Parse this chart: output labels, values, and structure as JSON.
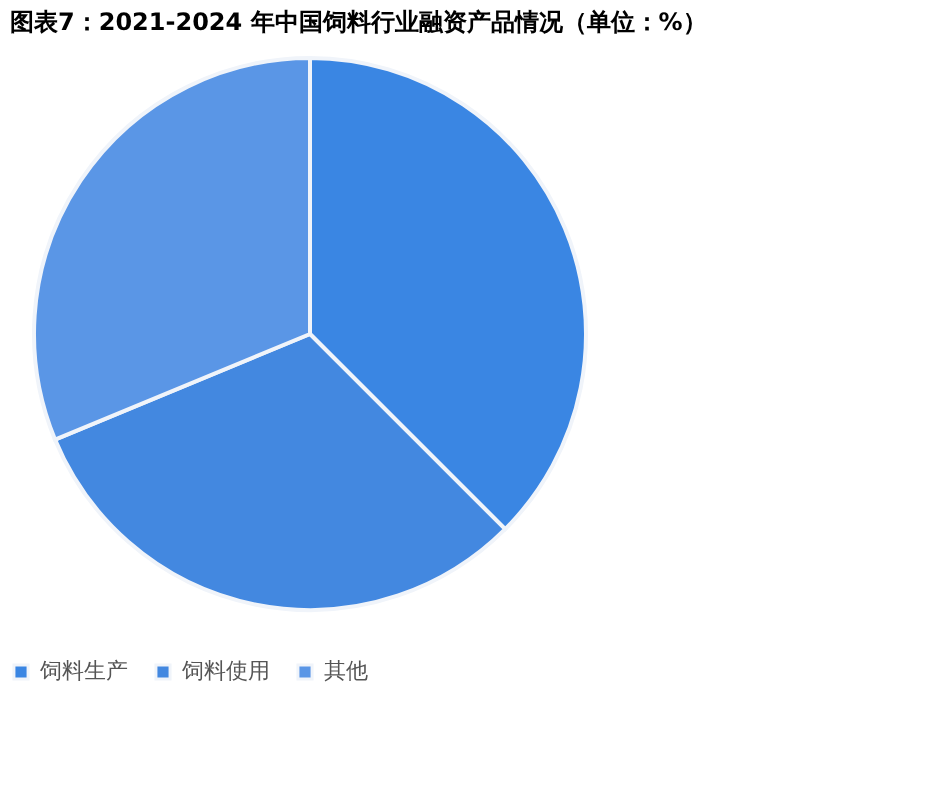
{
  "chart_data": {
    "type": "pie",
    "title": "图表7：2021-2024 年中国饲料行业融资产品情况（单位：%）",
    "categories": [
      "饲料生产",
      "饲料使用",
      "其他"
    ],
    "values": [
      37.5,
      31.25,
      31.25
    ],
    "colors": [
      "#3a86e3",
      "#4388e0",
      "#5a96e6"
    ],
    "legend": "bottom"
  }
}
